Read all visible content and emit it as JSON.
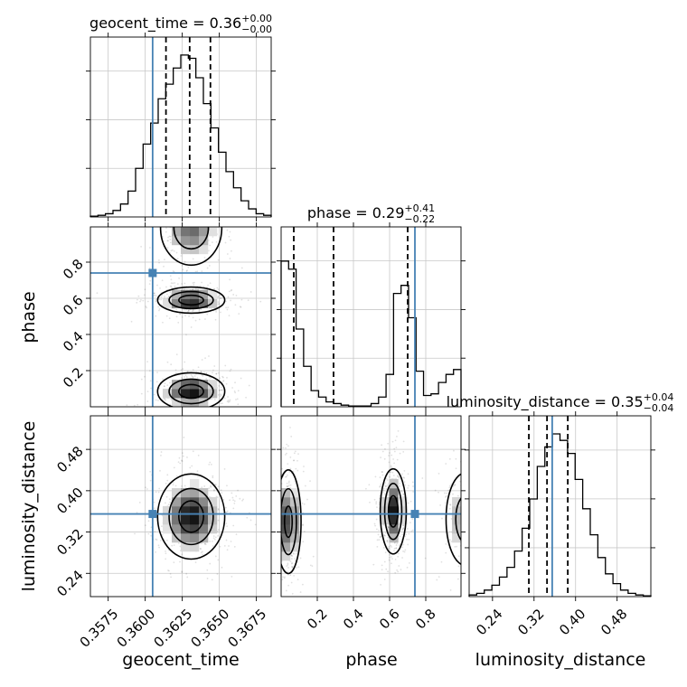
{
  "chart_data": {
    "type": "corner",
    "parameters": [
      "geocent_time",
      "phase",
      "luminosity_distance"
    ],
    "injection": {
      "geocent_time": 0.3605,
      "phase": 0.74,
      "luminosity_distance": 0.355
    },
    "colors": {
      "truth": "#4682b4",
      "hist": "#000000",
      "grid": "#c8c8c8"
    },
    "ranges": {
      "geocent_time": [
        0.3563,
        0.3685
      ],
      "phase": [
        0.0,
        0.995
      ],
      "luminosity_distance": [
        0.195,
        0.545
      ]
    },
    "ticks": {
      "geocent_time": {
        "values": [
          0.3575,
          0.36,
          0.3625,
          0.365,
          0.3675
        ],
        "labels": [
          "0.3575",
          "0.3600",
          "0.3625",
          "0.3650",
          "0.3675"
        ]
      },
      "phase": {
        "values": [
          0.2,
          0.4,
          0.6,
          0.8
        ],
        "labels": [
          "0.2",
          "0.4",
          "0.6",
          "0.8"
        ]
      },
      "luminosity_distance": {
        "values": [
          0.24,
          0.32,
          0.4,
          0.48
        ],
        "labels": [
          "0.24",
          "0.32",
          "0.40",
          "0.48"
        ]
      }
    },
    "axis_labels": {
      "geocent_time": "geocent_time",
      "phase": "phase",
      "luminosity_distance": "luminosity_distance"
    },
    "titles": [
      {
        "param": "geocent_time",
        "name": "geocent_time",
        "median": "0.36",
        "plus": "+0.00",
        "minus": "−0.00"
      },
      {
        "param": "phase",
        "name": "phase",
        "median": "0.29",
        "plus": "+0.41",
        "minus": "−0.22"
      },
      {
        "param": "luminosity_distance",
        "name": "luminosity_distance",
        "median": "0.35",
        "plus": "+0.04",
        "minus": "−0.04"
      }
    ],
    "quantiles": {
      "geocent_time": [
        0.3614,
        0.363,
        0.3644
      ],
      "phase": [
        0.07,
        0.29,
        0.7
      ],
      "luminosity_distance": [
        0.31,
        0.345,
        0.385
      ]
    },
    "histograms": {
      "geocent_time": [
        0.005,
        0.01,
        0.02,
        0.04,
        0.08,
        0.16,
        0.3,
        0.45,
        0.58,
        0.73,
        0.82,
        0.92,
        1.0,
        0.98,
        0.86,
        0.7,
        0.55,
        0.4,
        0.28,
        0.18,
        0.1,
        0.05,
        0.02,
        0.01
      ],
      "phase": [
        0.9,
        0.85,
        0.48,
        0.25,
        0.1,
        0.06,
        0.03,
        0.02,
        0.01,
        0.005,
        0.005,
        0.005,
        0.02,
        0.06,
        0.2,
        0.7,
        0.75,
        0.55,
        0.22,
        0.07,
        0.08,
        0.15,
        0.2,
        0.23
      ],
      "luminosity_distance": [
        0.01,
        0.02,
        0.04,
        0.07,
        0.12,
        0.18,
        0.28,
        0.42,
        0.6,
        0.8,
        0.92,
        1.0,
        0.96,
        0.88,
        0.72,
        0.54,
        0.38,
        0.24,
        0.14,
        0.08,
        0.04,
        0.02,
        0.01,
        0.005
      ]
    },
    "density_blobs": {
      "phase_vs_geocent_time": [
        {
          "cx": 0.3631,
          "cy": 0.99,
          "sx": 0.0011,
          "sy": 0.11,
          "w": 0.7
        },
        {
          "cx": 0.3631,
          "cy": 0.59,
          "sx": 0.0011,
          "sy": 0.035,
          "w": 1.0
        },
        {
          "cx": 0.3631,
          "cy": 0.085,
          "sx": 0.0011,
          "sy": 0.05,
          "w": 1.0
        }
      ],
      "luminosity_distance_vs_geocent_time": [
        {
          "cx": 0.3631,
          "cy": 0.35,
          "sx": 0.0011,
          "sy": 0.04,
          "w": 1.0
        }
      ],
      "luminosity_distance_vs_phase": [
        {
          "cx": 0.04,
          "cy": 0.34,
          "sx": 0.035,
          "sy": 0.05,
          "w": 0.9
        },
        {
          "cx": 0.62,
          "cy": 0.36,
          "sx": 0.035,
          "sy": 0.04,
          "w": 1.0
        },
        {
          "cx": 1.02,
          "cy": 0.345,
          "sx": 0.06,
          "sy": 0.05,
          "w": 0.6
        }
      ]
    },
    "contour_levels": [
      0.12,
      0.4,
      0.75
    ],
    "grid": true
  }
}
